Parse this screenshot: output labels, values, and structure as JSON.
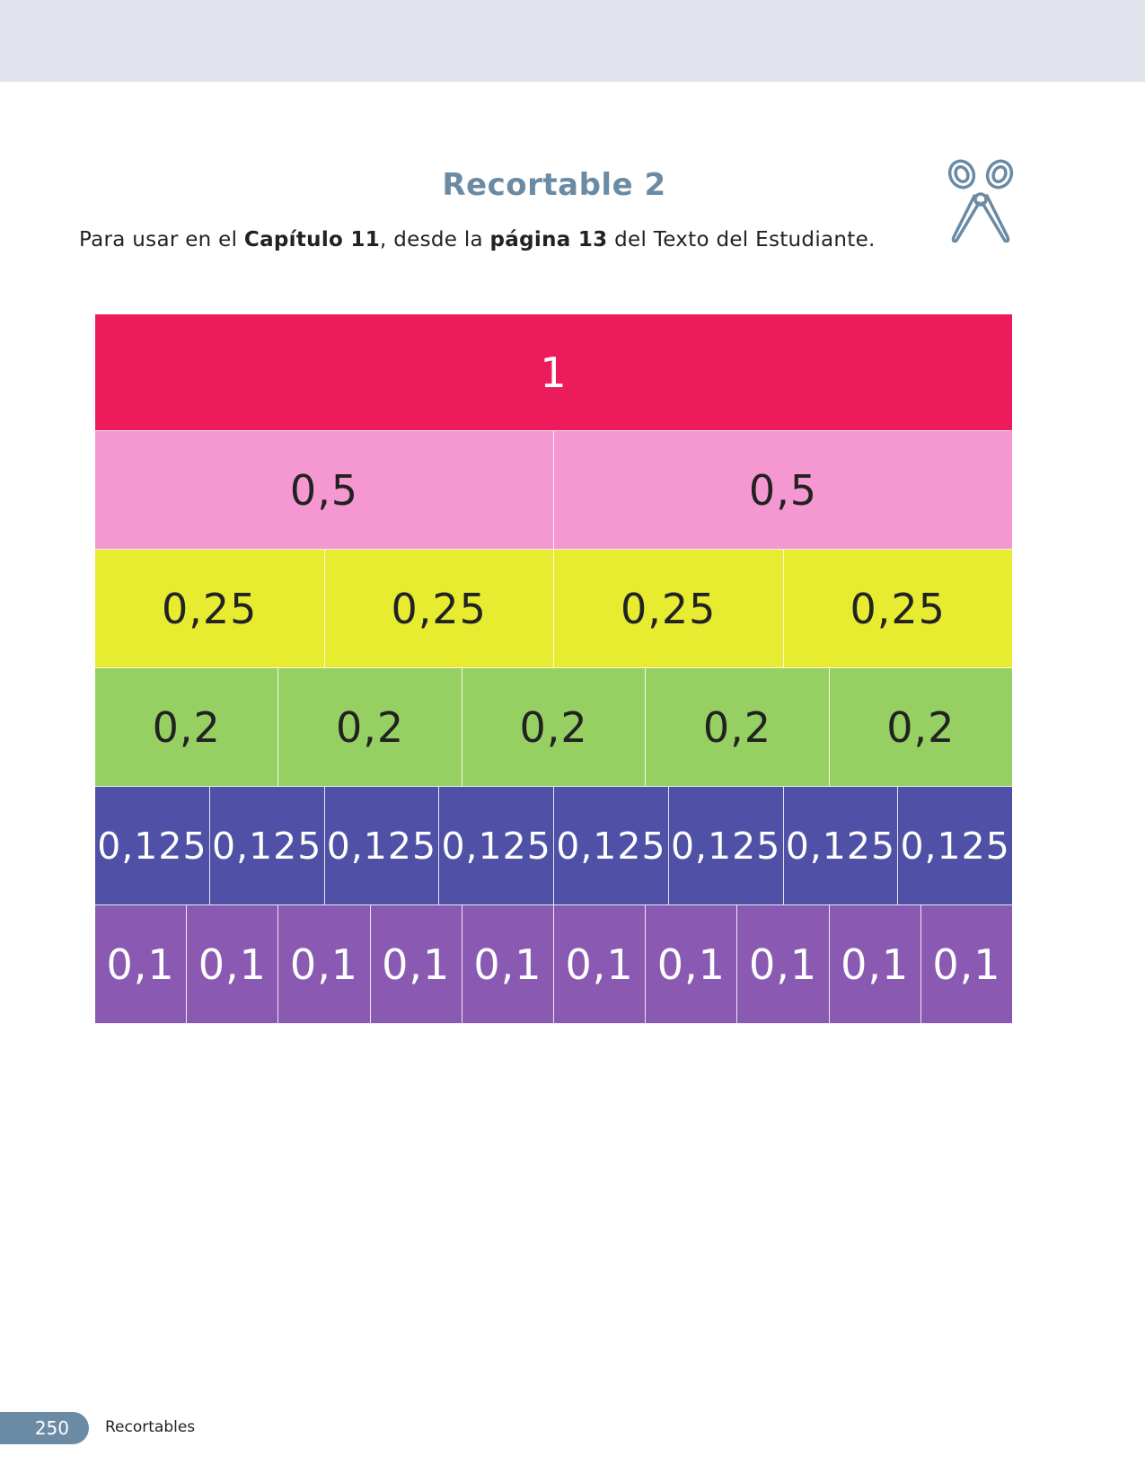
{
  "header": {
    "title": "Recortable 2",
    "instruction": {
      "prefix": "Para usar en el ",
      "chapter": "Capítulo 11",
      "middle": ", desde la ",
      "page_ref": "página 13",
      "suffix": " del Texto del Estudiante."
    },
    "icon": "scissors-icon"
  },
  "fraction_wall": {
    "rows": [
      {
        "color": "#ec1b5b",
        "text_color": "#ffffff",
        "font_size": 46,
        "tiles": [
          "1"
        ]
      },
      {
        "color": "#f597d1",
        "text_color": "#222222",
        "font_size": 46,
        "tiles": [
          "0,5",
          "0,5"
        ]
      },
      {
        "color": "#e7ec30",
        "text_color": "#222222",
        "font_size": 46,
        "tiles": [
          "0,25",
          "0,25",
          "0,25",
          "0,25"
        ]
      },
      {
        "color": "#96d062",
        "text_color": "#222222",
        "font_size": 46,
        "tiles": [
          "0,2",
          "0,2",
          "0,2",
          "0,2",
          "0,2"
        ]
      },
      {
        "color": "#4e51a6",
        "text_color": "#ffffff",
        "font_size": 41,
        "tiles": [
          "0,125",
          "0,125",
          "0,125",
          "0,125",
          "0,125",
          "0,125",
          "0,125",
          "0,125"
        ]
      },
      {
        "color": "#8a5ab3",
        "text_color": "#ffffff",
        "font_size": 46,
        "tiles": [
          "0,1",
          "0,1",
          "0,1",
          "0,1",
          "0,1",
          "0,1",
          "0,1",
          "0,1",
          "0,1",
          "0,1"
        ]
      }
    ]
  },
  "footer": {
    "page_number": "250",
    "section": "Recortables",
    "tab_color": "#6b8ba4"
  }
}
